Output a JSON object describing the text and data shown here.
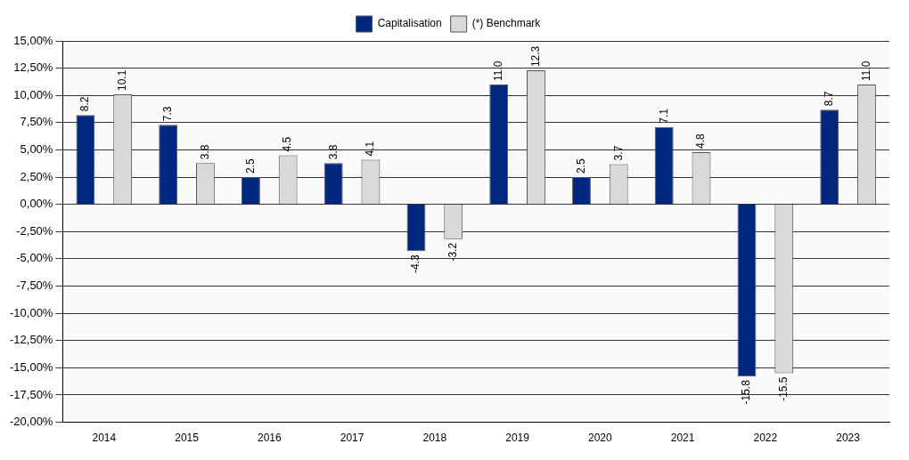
{
  "chart_data": {
    "type": "bar",
    "categories": [
      "2014",
      "2015",
      "2016",
      "2017",
      "2018",
      "2019",
      "2020",
      "2021",
      "2022",
      "2023"
    ],
    "series": [
      {
        "name": "Capitalisation",
        "color": "#002780",
        "values": [
          8.2,
          7.3,
          2.5,
          3.8,
          -4.3,
          11.0,
          2.5,
          7.1,
          -15.8,
          8.7
        ],
        "value_labels": [
          "8.2",
          "7.3",
          "2.5",
          "3.8",
          "-4.3",
          "11.0",
          "2.5",
          "7.1",
          "-15.8",
          "8.7"
        ]
      },
      {
        "name": "(*) Benchmark",
        "color": "#d9d9d9",
        "values": [
          10.1,
          3.8,
          4.5,
          4.1,
          -3.2,
          12.3,
          3.7,
          4.8,
          -15.5,
          11.0
        ],
        "value_labels": [
          "10.1",
          "3.8",
          "4.5",
          "4.1",
          "-3.2",
          "12.3",
          "3.7",
          "4.8",
          "-15.5",
          "11.0"
        ]
      }
    ],
    "ylim": [
      -20,
      15
    ],
    "yticks": [
      {
        "value": -20,
        "label": "-20,00%"
      },
      {
        "value": -17.5,
        "label": "-17,50%"
      },
      {
        "value": -15,
        "label": "-15,00%"
      },
      {
        "value": -12.5,
        "label": "-12,50%"
      },
      {
        "value": -10,
        "label": "-10,00%"
      },
      {
        "value": -7.5,
        "label": "-7,50%"
      },
      {
        "value": -5,
        "label": "-5,00%"
      },
      {
        "value": -2.5,
        "label": "-2,50%"
      },
      {
        "value": 0,
        "label": "0,00%"
      },
      {
        "value": 2.5,
        "label": "2,50%"
      },
      {
        "value": 5,
        "label": "5,00%"
      },
      {
        "value": 7.5,
        "label": "7,50%"
      },
      {
        "value": 10,
        "label": "10,00%"
      },
      {
        "value": 12.5,
        "label": "12,50%"
      },
      {
        "value": 15,
        "label": "15,00%"
      }
    ],
    "grid": "y",
    "legend": "top"
  }
}
